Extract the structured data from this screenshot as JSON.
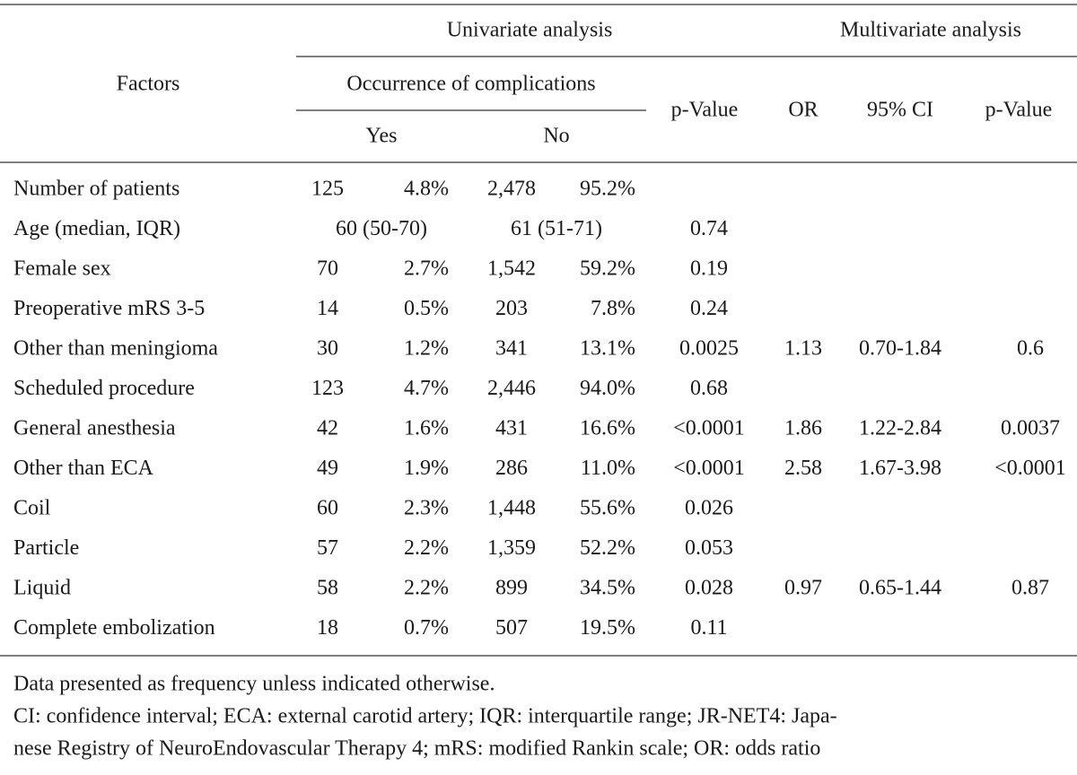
{
  "table": {
    "header": {
      "factors": "Factors",
      "univariate": "Univariate analysis",
      "multivariate": "Multivariate analysis",
      "occurrence": "Occurrence of complications",
      "yes": "Yes",
      "no": "No",
      "p_value": "p-Value",
      "or": "OR",
      "ci": "95% CI",
      "p_value_multi": "p-Value"
    },
    "rows": [
      {
        "factor": "Number of patients",
        "yes": [
          "125",
          "4.8%"
        ],
        "no": [
          "2,478",
          "95.2%"
        ]
      },
      {
        "factor": "Age (median, IQR)",
        "yes": "60 (50-70)",
        "no": "61 (51-71)",
        "p": "0.74"
      },
      {
        "factor": "Female sex",
        "yes": [
          "70",
          "2.7%"
        ],
        "no": [
          "1,542",
          "59.2%"
        ],
        "p": "0.19"
      },
      {
        "factor": "Preoperative mRS 3-5",
        "yes": [
          "14",
          "0.5%"
        ],
        "no": [
          "203",
          "7.8%"
        ],
        "p": "0.24"
      },
      {
        "factor": "Other than meningioma",
        "yes": [
          "30",
          "1.2%"
        ],
        "no": [
          "341",
          "13.1%"
        ],
        "p": "0.0025",
        "or": "1.13",
        "ci": "0.70-1.84",
        "p_multi": "0.6"
      },
      {
        "factor": "Scheduled procedure",
        "yes": [
          "123",
          "4.7%"
        ],
        "no": [
          "2,446",
          "94.0%"
        ],
        "p": "0.68"
      },
      {
        "factor": "General anesthesia",
        "yes": [
          "42",
          "1.6%"
        ],
        "no": [
          "431",
          "16.6%"
        ],
        "p": "<0.0001",
        "or": "1.86",
        "ci": "1.22-2.84",
        "p_multi": "0.0037"
      },
      {
        "factor": "Other than ECA",
        "yes": [
          "49",
          "1.9%"
        ],
        "no": [
          "286",
          "11.0%"
        ],
        "p": "<0.0001",
        "or": "2.58",
        "ci": "1.67-3.98",
        "p_multi": "<0.0001"
      },
      {
        "factor": "Coil",
        "yes": [
          "60",
          "2.3%"
        ],
        "no": [
          "1,448",
          "55.6%"
        ],
        "p": "0.026"
      },
      {
        "factor": "Particle",
        "yes": [
          "57",
          "2.2%"
        ],
        "no": [
          "1,359",
          "52.2%"
        ],
        "p": "0.053"
      },
      {
        "factor": "Liquid",
        "yes": [
          "58",
          "2.2%"
        ],
        "no": [
          "899",
          "34.5%"
        ],
        "p": "0.028",
        "or": "0.97",
        "ci": "0.65-1.44",
        "p_multi": "0.87"
      },
      {
        "factor": "Complete embolization",
        "yes": [
          "18",
          "0.7%"
        ],
        "no": [
          "507",
          "19.5%"
        ],
        "p": "0.11"
      }
    ],
    "footnotes": [
      "Data presented as frequency unless indicated otherwise.",
      "CI: confidence interval; ECA: external carotid artery; IQR: interquartile range; JR-NET4: Japa-",
      "nese Registry of NeuroEndovascular Therapy 4; mRS: modified Rankin scale; OR: odds ratio"
    ]
  }
}
